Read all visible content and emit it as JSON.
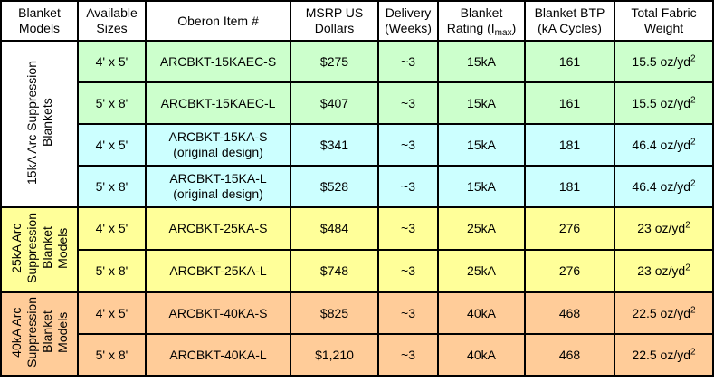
{
  "headers": {
    "models": "Blanket\nModels",
    "sizes": "Available\nSizes",
    "item": "Oberon Item #",
    "msrp": "MSRP US\nDollars",
    "delivery": "Delivery\n(Weeks)",
    "rating_pre": "Blanket\nRating (I",
    "rating_sub": "max",
    "rating_post": ")",
    "btp": "Blanket BTP\n(kA Cycles)",
    "weight": "Total Fabric\nWeight"
  },
  "groups": [
    {
      "label": "15kA Arc Suppression\nBlankets"
    },
    {
      "label": "25kA Arc\nSuppression\nBlanket\nModels"
    },
    {
      "label": "40kA Arc\nSuppression\nBlanket\nModels"
    }
  ],
  "rows": [
    {
      "size": "4' x 5'",
      "item": "ARCBKT-15KAEC-S",
      "msrp": "$275",
      "delivery": "~3",
      "rating": "15kA",
      "btp": "161",
      "weight": "15.5 oz/yd",
      "weight_sup": "2"
    },
    {
      "size": "5' x 8'",
      "item": "ARCBKT-15KAEC-L",
      "msrp": "$407",
      "delivery": "~3",
      "rating": "15kA",
      "btp": "161",
      "weight": "15.5 oz/yd",
      "weight_sup": "2"
    },
    {
      "size": "4' x 5'",
      "item": "ARCBKT-15KA-S\n(original design)",
      "msrp": "$341",
      "delivery": "~3",
      "rating": "15kA",
      "btp": "181",
      "weight": "46.4 oz/yd",
      "weight_sup": "2"
    },
    {
      "size": "5' x 8'",
      "item": "ARCBKT-15KA-L\n(original design)",
      "msrp": "$528",
      "delivery": "~3",
      "rating": "15kA",
      "btp": "181",
      "weight": "46.4 oz/yd",
      "weight_sup": "2"
    },
    {
      "size": "4' x 5'",
      "item": "ARCBKT-25KA-S",
      "msrp": "$484",
      "delivery": "~3",
      "rating": "25kA",
      "btp": "276",
      "weight": "23 oz/yd",
      "weight_sup": "2"
    },
    {
      "size": "5' x 8'",
      "item": "ARCBKT-25KA-L",
      "msrp": "$748",
      "delivery": "~3",
      "rating": "25kA",
      "btp": "276",
      "weight": "23 oz/yd",
      "weight_sup": "2"
    },
    {
      "size": "4' x 5'",
      "item": "ARCBKT-40KA-S",
      "msrp": "$825",
      "delivery": "~3",
      "rating": "40kA",
      "btp": "468",
      "weight": "22.5 oz/yd",
      "weight_sup": "2"
    },
    {
      "size": "5' x 8'",
      "item": "ARCBKT-40KA-L",
      "msrp": "$1,210",
      "delivery": "~3",
      "rating": "40kA",
      "btp": "468",
      "weight": "22.5 oz/yd",
      "weight_sup": "2"
    }
  ],
  "colors": {
    "group15_ec_rows": "#ccffcc",
    "group15_original_rows": "#ccffff",
    "group25": "#ffff99",
    "group40": "#ffcc99",
    "border": "#000000"
  }
}
